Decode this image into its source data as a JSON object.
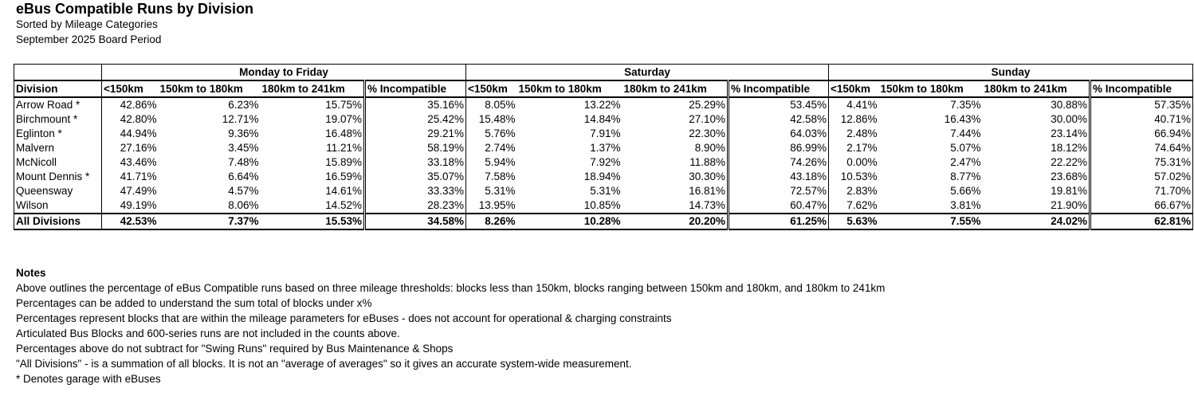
{
  "title": "eBus Compatible Runs by Division",
  "subtitle": "Sorted by Mileage Categories",
  "period": "September 2025 Board Period",
  "table": {
    "groups": [
      "Monday to Friday",
      "Saturday",
      "Sunday"
    ],
    "division_header": "Division",
    "columns": [
      "<150km",
      "150km to 180km",
      "180km to 241km",
      "% Incompatible"
    ],
    "rows": [
      {
        "division": "Arrow Road *",
        "values": [
          "42.86%",
          "6.23%",
          "15.75%",
          "35.16%",
          "8.05%",
          "13.22%",
          "25.29%",
          "53.45%",
          "4.41%",
          "7.35%",
          "30.88%",
          "57.35%"
        ]
      },
      {
        "division": "Birchmount *",
        "values": [
          "42.80%",
          "12.71%",
          "19.07%",
          "25.42%",
          "15.48%",
          "14.84%",
          "27.10%",
          "42.58%",
          "12.86%",
          "16.43%",
          "30.00%",
          "40.71%"
        ]
      },
      {
        "division": "Eglinton *",
        "values": [
          "44.94%",
          "9.36%",
          "16.48%",
          "29.21%",
          "5.76%",
          "7.91%",
          "22.30%",
          "64.03%",
          "2.48%",
          "7.44%",
          "23.14%",
          "66.94%"
        ]
      },
      {
        "division": "Malvern",
        "values": [
          "27.16%",
          "3.45%",
          "11.21%",
          "58.19%",
          "2.74%",
          "1.37%",
          "8.90%",
          "86.99%",
          "2.17%",
          "5.07%",
          "18.12%",
          "74.64%"
        ]
      },
      {
        "division": "McNicoll",
        "values": [
          "43.46%",
          "7.48%",
          "15.89%",
          "33.18%",
          "5.94%",
          "7.92%",
          "11.88%",
          "74.26%",
          "0.00%",
          "2.47%",
          "22.22%",
          "75.31%"
        ]
      },
      {
        "division": "Mount Dennis *",
        "values": [
          "41.71%",
          "6.64%",
          "16.59%",
          "35.07%",
          "7.58%",
          "18.94%",
          "30.30%",
          "43.18%",
          "10.53%",
          "8.77%",
          "23.68%",
          "57.02%"
        ]
      },
      {
        "division": "Queensway",
        "values": [
          "47.49%",
          "4.57%",
          "14.61%",
          "33.33%",
          "5.31%",
          "5.31%",
          "16.81%",
          "72.57%",
          "2.83%",
          "5.66%",
          "19.81%",
          "71.70%"
        ]
      },
      {
        "division": "Wilson",
        "values": [
          "49.19%",
          "8.06%",
          "14.52%",
          "28.23%",
          "13.95%",
          "10.85%",
          "14.73%",
          "60.47%",
          "7.62%",
          "3.81%",
          "21.90%",
          "66.67%"
        ]
      }
    ],
    "total": {
      "division": "All Divisions",
      "values": [
        "42.53%",
        "7.37%",
        "15.53%",
        "34.58%",
        "8.26%",
        "10.28%",
        "20.20%",
        "61.25%",
        "5.63%",
        "7.55%",
        "24.02%",
        "62.81%"
      ]
    }
  },
  "notes": {
    "heading": "Notes",
    "lines": [
      "Above outlines the percentage of eBus Compatible runs based on three mileage thresholds: blocks less than 150km, blocks ranging between 150km and 180km, and 180km to 241km",
      "Percentages can be added to understand the sum total of blocks under x%",
      "Percentages represent blocks that are within the mileage parameters for eBuses - does not account for operational & charging constraints",
      "Articulated Bus Blocks and 600-series runs are not included in the counts above.",
      "Percentages above do not subtract for \"Swing Runs\" required by Bus Maintenance & Shops",
      "\"All Divisions\" - is a summation of all blocks. It is not an \"average of averages\" so it gives an accurate system-wide measurement.",
      "* Denotes garage with eBuses"
    ]
  }
}
